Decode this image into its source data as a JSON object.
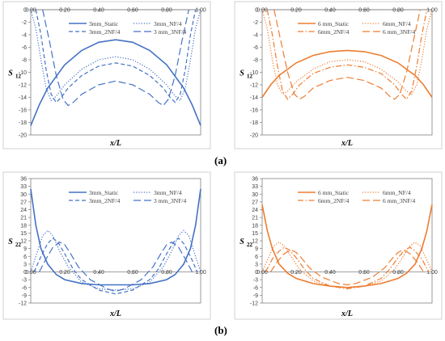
{
  "captions": {
    "a": "(a)",
    "b": "(b)"
  },
  "chart_data": [
    {
      "type": "line",
      "xlabel": "x/L",
      "ylabel_main": "S",
      "ylabel_sub": "12",
      "xlim": [
        0,
        1
      ],
      "ylim": [
        -20,
        0
      ],
      "xticks": [
        0,
        0.2,
        0.4,
        0.6,
        0.8,
        1.0
      ],
      "xtick_labels": [
        "0.00",
        "0.20",
        "0.40",
        "0.60",
        "0.80",
        "1.00"
      ],
      "yticks": [
        0,
        -2,
        -4,
        -6,
        -8,
        -10,
        -12,
        -14,
        -16,
        -18,
        -20
      ],
      "color": "#4472c4",
      "legend": "top",
      "series": [
        {
          "name": "3mm_Static",
          "style": "solid",
          "x": [
            0,
            0.05,
            0.1,
            0.2,
            0.3,
            0.4,
            0.5,
            0.6,
            0.7,
            0.8,
            0.9,
            0.95,
            1.0
          ],
          "y": [
            -18.5,
            -15.2,
            -12.5,
            -8.8,
            -6.5,
            -5.2,
            -4.8,
            -5.2,
            -6.5,
            -8.8,
            -12.5,
            -15.2,
            -18.5
          ]
        },
        {
          "name": "3mm_NF/4",
          "style": "dotted",
          "x": [
            0,
            0.03,
            0.06,
            0.09,
            0.12,
            0.15,
            0.2,
            0.3,
            0.4,
            0.5,
            0.6,
            0.7,
            0.8,
            0.85,
            0.88,
            0.91,
            0.94,
            0.97,
            1.0
          ],
          "y": [
            0,
            -3,
            -8,
            -12.5,
            -14.5,
            -13.8,
            -12,
            -9.5,
            -8,
            -7.5,
            -8,
            -9.5,
            -12,
            -13.8,
            -14.5,
            -12.5,
            -8,
            -3,
            0
          ]
        },
        {
          "name": "3mm_2NF/4",
          "style": "dash",
          "x": [
            0.03,
            0.06,
            0.09,
            0.12,
            0.15,
            0.18,
            0.22,
            0.3,
            0.4,
            0.5,
            0.6,
            0.7,
            0.78,
            0.82,
            0.85,
            0.88,
            0.91,
            0.94,
            0.97
          ],
          "y": [
            0,
            -4,
            -9.5,
            -13.5,
            -14.8,
            -14,
            -12.5,
            -10.5,
            -9,
            -8.5,
            -9,
            -10.5,
            -12.5,
            -14,
            -14.8,
            -13.5,
            -9.5,
            -4,
            0
          ]
        },
        {
          "name": "3 mm_3NF/4",
          "style": "longdash",
          "x": [
            0.07,
            0.11,
            0.15,
            0.19,
            0.22,
            0.25,
            0.3,
            0.4,
            0.5,
            0.6,
            0.7,
            0.75,
            0.78,
            0.81,
            0.85,
            0.89,
            0.93
          ],
          "y": [
            0,
            -5,
            -10.5,
            -14.3,
            -15.3,
            -14.8,
            -13.5,
            -12,
            -11.4,
            -12,
            -13.5,
            -14.8,
            -15.3,
            -14.3,
            -10.5,
            -5,
            0
          ]
        }
      ]
    },
    {
      "type": "line",
      "xlabel": "x/L",
      "ylabel_main": "S",
      "ylabel_sub": "12",
      "xlim": [
        0,
        1
      ],
      "ylim": [
        -20,
        0
      ],
      "xticks": [
        0,
        0.2,
        0.4,
        0.6,
        0.8,
        1.0
      ],
      "xtick_labels": [
        "0.00",
        "0.20",
        "0.40",
        "0.60",
        "0.80",
        "1.00"
      ],
      "yticks": [
        0,
        -2,
        -4,
        -6,
        -8,
        -10,
        -12,
        -14,
        -16,
        -18,
        -20
      ],
      "color": "#ed7d31",
      "legend": "top",
      "series": [
        {
          "name": "6 mm_Static",
          "style": "solid",
          "x": [
            0,
            0.05,
            0.1,
            0.2,
            0.3,
            0.4,
            0.5,
            0.6,
            0.7,
            0.8,
            0.9,
            0.95,
            1.0
          ],
          "y": [
            -14,
            -12,
            -10.5,
            -8.5,
            -7.3,
            -6.7,
            -6.5,
            -6.7,
            -7.3,
            -8.5,
            -10.5,
            -12,
            -14
          ]
        },
        {
          "name": "6mm_NF/4",
          "style": "dotted",
          "x": [
            0,
            0.03,
            0.06,
            0.09,
            0.12,
            0.15,
            0.2,
            0.3,
            0.4,
            0.5,
            0.6,
            0.7,
            0.8,
            0.85,
            0.88,
            0.91,
            0.94,
            0.97,
            1.0
          ],
          "y": [
            0,
            -3,
            -8,
            -12,
            -13.5,
            -13,
            -11.5,
            -9.5,
            -8.3,
            -8,
            -8.3,
            -9.5,
            -11.5,
            -13,
            -13.5,
            -12,
            -8,
            -3,
            0
          ]
        },
        {
          "name": "6mm_2NF/4",
          "style": "dashdot",
          "x": [
            0.03,
            0.06,
            0.09,
            0.12,
            0.15,
            0.18,
            0.22,
            0.3,
            0.4,
            0.5,
            0.6,
            0.7,
            0.78,
            0.82,
            0.85,
            0.88,
            0.91,
            0.94,
            0.97
          ],
          "y": [
            0,
            -4,
            -9,
            -13,
            -14.3,
            -13.5,
            -12,
            -10.2,
            -9.2,
            -8.8,
            -9.2,
            -10.2,
            -12,
            -13.5,
            -14.3,
            -13,
            -9,
            -4,
            0
          ]
        },
        {
          "name": "6 mm_3NF/4",
          "style": "longdash",
          "x": [
            0.07,
            0.11,
            0.15,
            0.19,
            0.22,
            0.25,
            0.3,
            0.4,
            0.5,
            0.6,
            0.7,
            0.75,
            0.78,
            0.81,
            0.85,
            0.89,
            0.93
          ],
          "y": [
            0,
            -5,
            -10,
            -13.5,
            -14.3,
            -13.8,
            -12.5,
            -11.3,
            -10.8,
            -11.3,
            -12.5,
            -13.8,
            -14.3,
            -13.5,
            -10,
            -5,
            0
          ]
        }
      ]
    },
    {
      "type": "line",
      "xlabel": "x/L",
      "ylabel_main": "S",
      "ylabel_sub": "22",
      "xlim": [
        0,
        1
      ],
      "ylim": [
        -12,
        36
      ],
      "xticks": [
        0,
        0.2,
        0.4,
        0.6,
        0.8,
        1.0
      ],
      "xtick_labels": [
        "0.00",
        "0.20",
        "0.40",
        "0.60",
        "0.80",
        "1.00"
      ],
      "yticks": [
        36,
        33,
        30,
        27,
        24,
        21,
        18,
        15,
        12,
        9,
        6,
        3,
        0,
        -3,
        -6,
        -9,
        -12
      ],
      "color": "#4472c4",
      "legend": "top",
      "series": [
        {
          "name": "3mm_Static",
          "style": "solid",
          "x": [
            0,
            0.03,
            0.06,
            0.1,
            0.15,
            0.2,
            0.3,
            0.4,
            0.5,
            0.6,
            0.7,
            0.8,
            0.85,
            0.9,
            0.94,
            0.97,
            1.0
          ],
          "y": [
            32,
            18,
            9,
            3,
            -1,
            -3,
            -4.5,
            -5,
            -5,
            -5,
            -4.5,
            -3,
            -1,
            3,
            9,
            18,
            32
          ]
        },
        {
          "name": "3mm_NF/4",
          "style": "dotted",
          "x": [
            0,
            0.04,
            0.07,
            0.1,
            0.13,
            0.17,
            0.22,
            0.3,
            0.4,
            0.5,
            0.6,
            0.7,
            0.78,
            0.83,
            0.87,
            0.9,
            0.93,
            0.96,
            1.0
          ],
          "y": [
            0,
            8,
            14,
            16,
            14,
            8,
            2,
            -4,
            -6.5,
            -7,
            -6.5,
            -4,
            2,
            8,
            14,
            16,
            14,
            8,
            0
          ]
        },
        {
          "name": "3mm_2NF/4",
          "style": "dash",
          "x": [
            0.02,
            0.06,
            0.1,
            0.13,
            0.16,
            0.2,
            0.25,
            0.3,
            0.4,
            0.5,
            0.6,
            0.7,
            0.75,
            0.8,
            0.84,
            0.87,
            0.9,
            0.94,
            0.98
          ],
          "y": [
            0,
            6,
            11,
            13,
            11.5,
            7,
            1,
            -3,
            -7,
            -8.5,
            -7,
            -3,
            1,
            7,
            11.5,
            13,
            11,
            6,
            0
          ]
        },
        {
          "name": "3 mm_3NF/4",
          "style": "longdash",
          "x": [
            0.05,
            0.09,
            0.13,
            0.17,
            0.2,
            0.23,
            0.28,
            0.35,
            0.45,
            0.5,
            0.55,
            0.65,
            0.72,
            0.77,
            0.8,
            0.83,
            0.87,
            0.91,
            0.95
          ],
          "y": [
            0,
            5,
            9.5,
            11.5,
            10.5,
            7.5,
            2,
            -3,
            -6.5,
            -7.5,
            -6.5,
            -3,
            2,
            7.5,
            10.5,
            11.5,
            9.5,
            5,
            0
          ]
        }
      ]
    },
    {
      "type": "line",
      "xlabel": "x/L",
      "ylabel_main": "S",
      "ylabel_sub": "22",
      "xlim": [
        0,
        1
      ],
      "ylim": [
        -12,
        36
      ],
      "xticks": [
        0,
        0.2,
        0.4,
        0.6,
        0.8,
        1.0
      ],
      "xtick_labels": [
        "0.00",
        "0.20",
        "0.40",
        "0.60",
        "0.80",
        "1.00"
      ],
      "yticks": [
        36,
        33,
        30,
        27,
        24,
        21,
        18,
        15,
        12,
        9,
        6,
        3,
        0,
        -3,
        -6,
        -9,
        -12
      ],
      "color": "#ed7d31",
      "legend": "top",
      "series": [
        {
          "name": "6 mm_Static",
          "style": "solid",
          "x": [
            0,
            0.03,
            0.06,
            0.1,
            0.15,
            0.2,
            0.3,
            0.4,
            0.5,
            0.6,
            0.7,
            0.8,
            0.85,
            0.9,
            0.94,
            0.97,
            1.0
          ],
          "y": [
            26,
            16,
            9,
            3,
            -0.5,
            -2.5,
            -4.5,
            -5.5,
            -6,
            -5.5,
            -4.5,
            -2.5,
            -0.5,
            3,
            9,
            16,
            26
          ]
        },
        {
          "name": "6mm_NF/4",
          "style": "dotted",
          "x": [
            0,
            0.04,
            0.07,
            0.1,
            0.13,
            0.17,
            0.22,
            0.3,
            0.4,
            0.5,
            0.6,
            0.7,
            0.78,
            0.83,
            0.87,
            0.9,
            0.93,
            0.96,
            1.0
          ],
          "y": [
            0,
            6,
            10,
            11.5,
            10,
            6,
            1,
            -3.5,
            -5.5,
            -6,
            -5.5,
            -3.5,
            1,
            6,
            10,
            11.5,
            10,
            6,
            0
          ]
        },
        {
          "name": "6mm_2NF/4",
          "style": "dashdot",
          "x": [
            0.02,
            0.06,
            0.1,
            0.13,
            0.16,
            0.2,
            0.25,
            0.3,
            0.4,
            0.5,
            0.6,
            0.7,
            0.75,
            0.8,
            0.84,
            0.87,
            0.9,
            0.94,
            0.98
          ],
          "y": [
            0,
            5,
            8,
            9.5,
            8.5,
            5.5,
            1,
            -2.5,
            -5.5,
            -6.5,
            -5.5,
            -2.5,
            1,
            5.5,
            8.5,
            9.5,
            8,
            5,
            0
          ]
        },
        {
          "name": "6 mm_3NF/4",
          "style": "longdash",
          "x": [
            0.05,
            0.09,
            0.13,
            0.17,
            0.2,
            0.23,
            0.28,
            0.35,
            0.45,
            0.5,
            0.55,
            0.65,
            0.72,
            0.77,
            0.8,
            0.83,
            0.87,
            0.91,
            0.95
          ],
          "y": [
            0,
            4,
            7,
            8.5,
            7.5,
            5.5,
            1.5,
            -2,
            -4.5,
            -5,
            -4.5,
            -2,
            1.5,
            5.5,
            7.5,
            8.5,
            7,
            4,
            0
          ]
        }
      ]
    }
  ]
}
